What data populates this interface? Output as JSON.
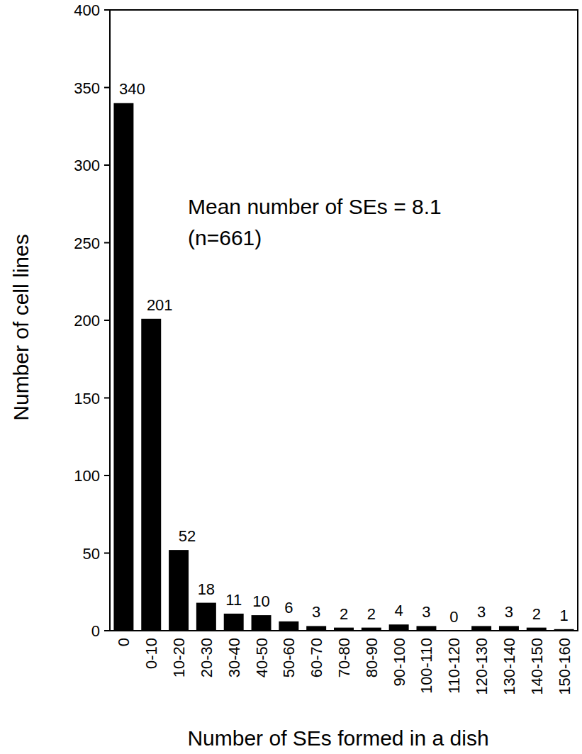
{
  "chart_data": {
    "type": "bar",
    "x_label": "Number of SEs formed in a dish",
    "y_label": "Number of cell lines",
    "annotations": [
      "Mean number of SEs = 8.1",
      "(n=661)"
    ],
    "categories": [
      "0",
      "0-10",
      "10-20",
      "20-30",
      "30-40",
      "40-50",
      "50-60",
      "60-70",
      "70-80",
      "80-90",
      "90-100",
      "100-110",
      "110-120",
      "120-130",
      "130-140",
      "140-150",
      "150-160"
    ],
    "values": [
      340,
      201,
      52,
      18,
      11,
      10,
      6,
      3,
      2,
      2,
      4,
      3,
      0,
      3,
      3,
      2,
      1
    ],
    "color": "#000000",
    "ylim": [
      0,
      400
    ],
    "yticks": [
      0,
      50,
      100,
      150,
      200,
      250,
      300,
      350,
      400
    ],
    "grid": false,
    "data_labels": true
  }
}
